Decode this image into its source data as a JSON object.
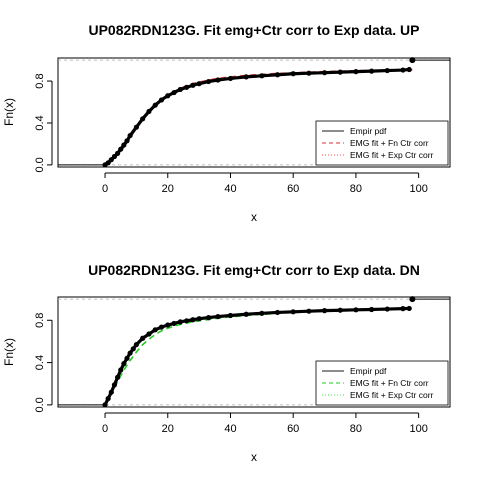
{
  "chart_data": [
    {
      "type": "line",
      "title": "UP082RDN123G. Fit emg+Ctr corr to Exp data. UP",
      "xlabel": "x",
      "ylabel": "Fn(x)",
      "xlim": [
        -15,
        110
      ],
      "ylim": [
        -0.02,
        1.02
      ],
      "xticks": [
        "0",
        "20",
        "40",
        "60",
        "80",
        "100"
      ],
      "yticks": [
        "0.0",
        "0.4",
        "0.8"
      ],
      "legend_position": "bottom-right",
      "legend": [
        {
          "label": "Empir pdf",
          "color": "#666666",
          "style": "solid"
        },
        {
          "label": "EMG fit + Fn Ctr corr",
          "color": "#e03030",
          "style": "dashed"
        },
        {
          "label": "EMG fit + Exp Ctr corr",
          "color": "#ff7070",
          "style": "dotted"
        }
      ],
      "empirical": {
        "x": [
          0,
          1,
          2,
          3,
          4,
          5,
          6,
          7,
          8,
          10,
          12,
          14,
          16,
          18,
          20,
          22,
          24,
          26,
          28,
          30,
          33,
          36,
          40,
          45,
          50,
          55,
          60,
          65,
          70,
          75,
          80,
          85,
          90,
          95,
          97
        ],
        "y": [
          0.0,
          0.02,
          0.05,
          0.08,
          0.11,
          0.15,
          0.19,
          0.23,
          0.28,
          0.36,
          0.44,
          0.51,
          0.57,
          0.62,
          0.66,
          0.69,
          0.72,
          0.74,
          0.76,
          0.775,
          0.795,
          0.81,
          0.825,
          0.84,
          0.85,
          0.86,
          0.87,
          0.875,
          0.88,
          0.885,
          0.89,
          0.895,
          0.9,
          0.905,
          0.91
        ],
        "final_point": [
          98,
          1.0
        ],
        "tail_end_x": 110,
        "color": "#000000"
      },
      "fits": [
        {
          "x": [
            0,
            2,
            4,
            6,
            8,
            10,
            12,
            14,
            16,
            18,
            20,
            22,
            24,
            26,
            28,
            30,
            35,
            40,
            45,
            50,
            55,
            60,
            65,
            70,
            75,
            80,
            85,
            90,
            95,
            98
          ],
          "y": [
            0.0,
            0.04,
            0.1,
            0.17,
            0.26,
            0.35,
            0.43,
            0.51,
            0.57,
            0.62,
            0.67,
            0.7,
            0.73,
            0.755,
            0.775,
            0.79,
            0.82,
            0.84,
            0.853,
            0.864,
            0.872,
            0.879,
            0.885,
            0.89,
            0.894,
            0.898,
            0.901,
            0.904,
            0.906,
            0.907
          ],
          "color": "#e03030",
          "style": "dashed"
        }
      ],
      "reference_lines_y": [
        0,
        1
      ]
    },
    {
      "type": "line",
      "title": "UP082RDN123G. Fit emg+Ctr corr to Exp data. DN",
      "xlabel": "x",
      "ylabel": "Fn(x)",
      "xlim": [
        -15,
        110
      ],
      "ylim": [
        -0.02,
        1.02
      ],
      "xticks": [
        "0",
        "20",
        "40",
        "60",
        "80",
        "100"
      ],
      "yticks": [
        "0.0",
        "0.4",
        "0.8"
      ],
      "legend_position": "bottom-right",
      "legend": [
        {
          "label": "Empir pdf",
          "color": "#666666",
          "style": "solid"
        },
        {
          "label": "EMG fit + Fn Ctr corr",
          "color": "#22cc22",
          "style": "dashed"
        },
        {
          "label": "EMG fit + Exp Ctr corr",
          "color": "#66ee66",
          "style": "dotted"
        }
      ],
      "empirical": {
        "x": [
          0,
          1,
          2,
          3,
          4,
          5,
          6,
          7,
          8,
          9,
          10,
          12,
          14,
          16,
          18,
          20,
          22,
          24,
          26,
          28,
          30,
          33,
          36,
          40,
          45,
          50,
          55,
          60,
          65,
          70,
          75,
          80,
          85,
          90,
          95,
          97
        ],
        "y": [
          0.0,
          0.06,
          0.12,
          0.19,
          0.26,
          0.33,
          0.39,
          0.44,
          0.49,
          0.53,
          0.57,
          0.63,
          0.67,
          0.71,
          0.735,
          0.755,
          0.77,
          0.785,
          0.795,
          0.805,
          0.815,
          0.825,
          0.835,
          0.845,
          0.857,
          0.866,
          0.874,
          0.88,
          0.886,
          0.891,
          0.895,
          0.899,
          0.902,
          0.906,
          0.91,
          0.912
        ],
        "final_point": [
          98,
          1.0
        ],
        "tail_end_x": 110,
        "color": "#000000"
      },
      "fits": [
        {
          "x": [
            0,
            2,
            4,
            6,
            8,
            10,
            12,
            14,
            16,
            18,
            20,
            22,
            24,
            26,
            28,
            30,
            35,
            40,
            45,
            50,
            55,
            60,
            65,
            70,
            75,
            80,
            85,
            90,
            95,
            98
          ],
          "y": [
            0.0,
            0.1,
            0.22,
            0.33,
            0.42,
            0.5,
            0.57,
            0.62,
            0.665,
            0.7,
            0.725,
            0.745,
            0.76,
            0.775,
            0.785,
            0.795,
            0.815,
            0.832,
            0.845,
            0.856,
            0.865,
            0.873,
            0.88,
            0.886,
            0.891,
            0.896,
            0.9,
            0.904,
            0.908,
            0.91
          ],
          "color": "#22cc22",
          "style": "dashed"
        }
      ],
      "reference_lines_y": [
        0,
        1
      ]
    }
  ]
}
